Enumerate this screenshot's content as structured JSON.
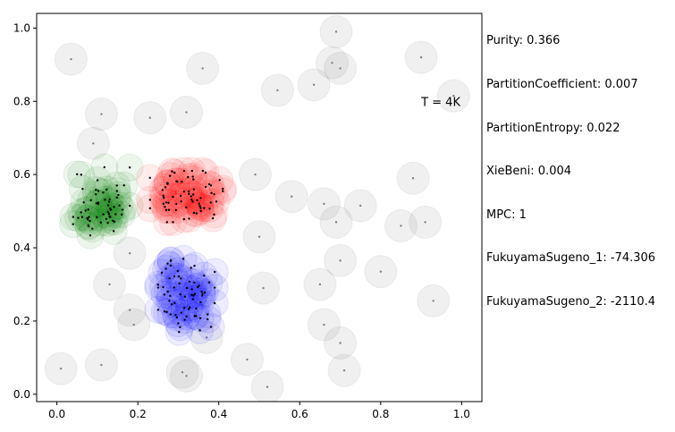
{
  "chart_data": {
    "type": "scatter",
    "xlim": [
      -0.05,
      1.05
    ],
    "ylim": [
      -0.02,
      1.04
    ],
    "x_ticks": [
      "0.0",
      "0.2",
      "0.4",
      "0.6",
      "0.8",
      "1.0"
    ],
    "y_ticks": [
      "0.0",
      "0.2",
      "0.4",
      "0.6",
      "0.8",
      "1.0"
    ],
    "grid": false,
    "annotation": {
      "text": "T = 4K",
      "x": 0.9,
      "y": 0.8
    },
    "colors": {
      "noise": "#808080",
      "green": "#008000",
      "red": "#ff0000",
      "blue": "#0000ff"
    },
    "clusters": [
      {
        "color": "green",
        "center": [
          0.11,
          0.52
        ],
        "spread": [
          0.035,
          0.05
        ],
        "count": 60,
        "seed": 11
      },
      {
        "color": "red",
        "center": [
          0.32,
          0.54
        ],
        "spread": [
          0.045,
          0.035
        ],
        "count": 70,
        "seed": 23
      },
      {
        "color": "blue",
        "center": [
          0.32,
          0.27
        ],
        "spread": [
          0.035,
          0.05
        ],
        "count": 70,
        "seed": 37
      }
    ],
    "noise_points": [
      [
        0.69,
        0.99
      ],
      [
        0.035,
        0.915
      ],
      [
        0.9,
        0.92
      ],
      [
        0.36,
        0.89
      ],
      [
        0.68,
        0.905
      ],
      [
        0.7,
        0.89
      ],
      [
        0.635,
        0.845
      ],
      [
        0.545,
        0.83
      ],
      [
        0.98,
        0.815
      ],
      [
        0.11,
        0.765
      ],
      [
        0.32,
        0.77
      ],
      [
        0.23,
        0.755
      ],
      [
        0.09,
        0.685
      ],
      [
        0.49,
        0.6
      ],
      [
        0.88,
        0.59
      ],
      [
        0.58,
        0.54
      ],
      [
        0.66,
        0.52
      ],
      [
        0.75,
        0.515
      ],
      [
        0.69,
        0.47
      ],
      [
        0.91,
        0.47
      ],
      [
        0.85,
        0.46
      ],
      [
        0.5,
        0.43
      ],
      [
        0.18,
        0.385
      ],
      [
        0.7,
        0.365
      ],
      [
        0.8,
        0.335
      ],
      [
        0.13,
        0.3
      ],
      [
        0.65,
        0.3
      ],
      [
        0.51,
        0.29
      ],
      [
        0.93,
        0.255
      ],
      [
        0.18,
        0.23
      ],
      [
        0.19,
        0.19
      ],
      [
        0.66,
        0.19
      ],
      [
        0.37,
        0.155
      ],
      [
        0.7,
        0.14
      ],
      [
        0.47,
        0.095
      ],
      [
        0.01,
        0.07
      ],
      [
        0.11,
        0.08
      ],
      [
        0.71,
        0.065
      ],
      [
        0.31,
        0.06
      ],
      [
        0.32,
        0.05
      ],
      [
        0.52,
        0.02
      ]
    ]
  },
  "metrics": [
    "Purity: 0.366",
    "PartitionCoefficient: 0.007",
    "PartitionEntropy: 0.022",
    "XieBeni: 0.004",
    "MPC: 1",
    "FukuyamaSugeno_1: -74.306",
    "FukuyamaSugeno_2: -2110.4"
  ]
}
